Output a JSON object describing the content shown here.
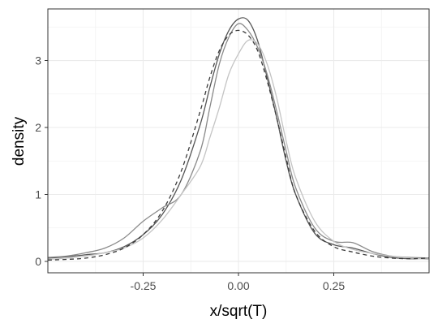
{
  "chart_data": {
    "type": "line",
    "xlabel": "x/sqrt(T)",
    "ylabel": "density",
    "xlim": [
      -0.5,
      0.5
    ],
    "ylim": [
      -0.17,
      3.77
    ],
    "x_ticks": [
      {
        "value": -0.25,
        "label": "-0.25"
      },
      {
        "value": 0.0,
        "label": "0.00"
      },
      {
        "value": 0.25,
        "label": "0.25"
      }
    ],
    "y_ticks": [
      {
        "value": 0,
        "label": "0"
      },
      {
        "value": 1,
        "label": "1"
      },
      {
        "value": 2,
        "label": "2"
      },
      {
        "value": 3,
        "label": "3"
      }
    ],
    "grid": true,
    "legend": "none",
    "series": [
      {
        "color": "#555555",
        "dash": "solid",
        "x": [
          -0.5,
          -0.45,
          -0.4,
          -0.35,
          -0.3,
          -0.25,
          -0.2,
          -0.15,
          -0.1,
          -0.075,
          -0.05,
          -0.025,
          0,
          0.025,
          0.05,
          0.075,
          0.1,
          0.125,
          0.15,
          0.2,
          0.25,
          0.3,
          0.35,
          0.4,
          0.45,
          0.5
        ],
        "y": [
          0.05,
          0.07,
          0.1,
          0.13,
          0.22,
          0.4,
          0.7,
          1.22,
          2.05,
          2.6,
          3.1,
          3.45,
          3.62,
          3.6,
          3.3,
          2.75,
          2.15,
          1.5,
          1.0,
          0.42,
          0.25,
          0.2,
          0.12,
          0.06,
          0.04,
          0.05
        ]
      },
      {
        "color": "#8a8a8a",
        "dash": "solid",
        "x": [
          -0.5,
          -0.45,
          -0.4,
          -0.35,
          -0.3,
          -0.25,
          -0.2,
          -0.15,
          -0.1,
          -0.075,
          -0.05,
          -0.025,
          0,
          0.025,
          0.05,
          0.075,
          0.1,
          0.125,
          0.15,
          0.2,
          0.25,
          0.3,
          0.35,
          0.4,
          0.45,
          0.5
        ],
        "y": [
          0.06,
          0.08,
          0.13,
          0.2,
          0.35,
          0.6,
          0.8,
          1.0,
          1.65,
          2.3,
          2.95,
          3.35,
          3.55,
          3.45,
          3.2,
          2.8,
          2.25,
          1.65,
          1.1,
          0.5,
          0.3,
          0.28,
          0.15,
          0.08,
          0.06,
          0.05
        ]
      },
      {
        "color": "#c4c4c4",
        "dash": "solid",
        "x": [
          -0.5,
          -0.45,
          -0.4,
          -0.35,
          -0.3,
          -0.25,
          -0.2,
          -0.15,
          -0.1,
          -0.075,
          -0.05,
          -0.025,
          0,
          0.025,
          0.05,
          0.075,
          0.1,
          0.125,
          0.15,
          0.2,
          0.25,
          0.3,
          0.35,
          0.4,
          0.45,
          0.5
        ],
        "y": [
          0.03,
          0.05,
          0.08,
          0.13,
          0.2,
          0.35,
          0.62,
          1.0,
          1.42,
          1.85,
          2.3,
          2.8,
          3.1,
          3.3,
          3.25,
          2.95,
          2.45,
          1.8,
          1.25,
          0.6,
          0.3,
          0.18,
          0.12,
          0.08,
          0.05,
          0.03
        ]
      },
      {
        "color": "#3a3a3a",
        "dash": "dashed",
        "x": [
          -0.5,
          -0.45,
          -0.4,
          -0.35,
          -0.3,
          -0.25,
          -0.2,
          -0.15,
          -0.1,
          -0.075,
          -0.05,
          -0.025,
          0,
          0.025,
          0.05,
          0.075,
          0.1,
          0.125,
          0.15,
          0.2,
          0.25,
          0.3,
          0.35,
          0.4,
          0.45,
          0.5
        ],
        "y": [
          0.02,
          0.03,
          0.05,
          0.1,
          0.2,
          0.4,
          0.75,
          1.35,
          2.25,
          2.75,
          3.15,
          3.38,
          3.45,
          3.38,
          3.15,
          2.7,
          2.15,
          1.55,
          1.0,
          0.45,
          0.22,
          0.14,
          0.08,
          0.05,
          0.04,
          0.05
        ]
      }
    ]
  }
}
